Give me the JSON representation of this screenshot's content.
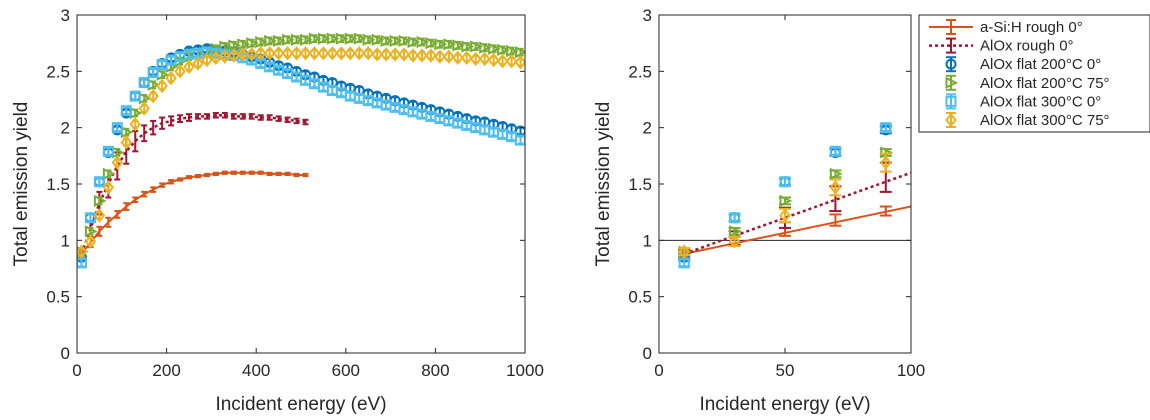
{
  "chart_data": [
    {
      "type": "scatter",
      "xlabel": "Incident energy (eV)",
      "ylabel": "Total emission yield",
      "xlim": [
        0,
        1000
      ],
      "ylim": [
        0,
        3
      ],
      "xticks": [
        0,
        200,
        400,
        600,
        800,
        1000
      ],
      "yticks": [
        0,
        0.5,
        1,
        1.5,
        2,
        2.5,
        3
      ],
      "xtick_labels": [
        "0",
        "200",
        "400",
        "600",
        "800",
        "1000"
      ],
      "ytick_labels": [
        "0",
        "0.5",
        "1",
        "1.5",
        "2",
        "2.5",
        "3"
      ],
      "grid": false,
      "series": [
        {
          "name": "a-Si:H rough 0°",
          "color": "#D95319",
          "marker": "none",
          "line": "solid",
          "errorbars": true,
          "x": [
            10,
            30,
            50,
            70,
            90,
            110,
            130,
            150,
            170,
            190,
            210,
            230,
            250,
            270,
            290,
            310,
            330,
            350,
            370,
            390,
            410,
            430,
            450,
            470,
            490,
            510
          ],
          "y": [
            0.88,
            0.98,
            1.08,
            1.16,
            1.23,
            1.3,
            1.36,
            1.41,
            1.45,
            1.49,
            1.52,
            1.54,
            1.56,
            1.57,
            1.58,
            1.59,
            1.6,
            1.6,
            1.6,
            1.6,
            1.6,
            1.59,
            1.59,
            1.59,
            1.58,
            1.58
          ],
          "err": [
            0.03,
            0.04,
            0.04,
            0.04,
            0.03,
            0.03,
            0.02,
            0.02,
            0.02,
            0.015,
            0.015,
            0.01,
            0.01,
            0.01,
            0.01,
            0.01,
            0.01,
            0.01,
            0.01,
            0.01,
            0.01,
            0.01,
            0.01,
            0.01,
            0.01,
            0.01
          ]
        },
        {
          "name": "AlOx rough 0°",
          "color": "#A2142F",
          "marker": "none",
          "line": "dotted",
          "errorbars": true,
          "x": [
            10,
            30,
            50,
            70,
            90,
            110,
            130,
            150,
            170,
            190,
            210,
            230,
            250,
            270,
            290,
            310,
            330,
            350,
            370,
            390,
            410,
            430,
            450,
            470,
            490,
            510
          ],
          "y": [
            0.88,
            1.1,
            1.33,
            1.5,
            1.66,
            1.79,
            1.88,
            1.95,
            2.0,
            2.04,
            2.06,
            2.08,
            2.09,
            2.1,
            2.1,
            2.11,
            2.11,
            2.1,
            2.1,
            2.1,
            2.09,
            2.09,
            2.08,
            2.07,
            2.06,
            2.05
          ],
          "err": [
            0.04,
            0.07,
            0.1,
            0.12,
            0.12,
            0.11,
            0.09,
            0.07,
            0.06,
            0.05,
            0.04,
            0.03,
            0.03,
            0.02,
            0.02,
            0.02,
            0.02,
            0.02,
            0.02,
            0.02,
            0.02,
            0.02,
            0.02,
            0.02,
            0.02,
            0.02
          ]
        },
        {
          "name": "AlOx flat 200°C 0°",
          "color": "#0072BD",
          "marker": "circle",
          "line": "none",
          "errorbars": true,
          "x": [
            10,
            30,
            50,
            70,
            90,
            110,
            130,
            150,
            170,
            190,
            210,
            230,
            250,
            270,
            290,
            310,
            330,
            350,
            370,
            390,
            410,
            430,
            450,
            470,
            490,
            510,
            530,
            550,
            570,
            590,
            610,
            630,
            650,
            670,
            690,
            710,
            730,
            750,
            770,
            790,
            810,
            830,
            850,
            870,
            890,
            910,
            930,
            950,
            970,
            990
          ],
          "y": [
            0.85,
            1.2,
            1.52,
            1.78,
            1.98,
            2.13,
            2.28,
            2.4,
            2.5,
            2.57,
            2.62,
            2.65,
            2.68,
            2.69,
            2.7,
            2.69,
            2.68,
            2.67,
            2.65,
            2.63,
            2.61,
            2.58,
            2.55,
            2.53,
            2.5,
            2.47,
            2.45,
            2.42,
            2.4,
            2.37,
            2.35,
            2.33,
            2.3,
            2.28,
            2.26,
            2.24,
            2.22,
            2.2,
            2.18,
            2.16,
            2.14,
            2.12,
            2.1,
            2.08,
            2.06,
            2.05,
            2.03,
            2.01,
            1.99,
            1.97
          ],
          "err": [
            0.03,
            0.03,
            0.03,
            0.03,
            0.03,
            0.03,
            0.03,
            0.03,
            0.03,
            0.03,
            0.03,
            0.03,
            0.03,
            0.03,
            0.03,
            0.03,
            0.03,
            0.03,
            0.03,
            0.03,
            0.03,
            0.03,
            0.03,
            0.03,
            0.03,
            0.03,
            0.03,
            0.03,
            0.03,
            0.03,
            0.03,
            0.03,
            0.03,
            0.03,
            0.03,
            0.03,
            0.03,
            0.03,
            0.03,
            0.03,
            0.03,
            0.03,
            0.03,
            0.03,
            0.03,
            0.03,
            0.03,
            0.03,
            0.03,
            0.03
          ]
        },
        {
          "name": "AlOx flat 200°C 75°",
          "color": "#77AC30",
          "marker": "triangle-right",
          "line": "none",
          "errorbars": true,
          "x": [
            10,
            30,
            50,
            70,
            90,
            110,
            130,
            150,
            170,
            190,
            210,
            230,
            250,
            270,
            290,
            310,
            330,
            350,
            370,
            390,
            410,
            430,
            450,
            470,
            490,
            510,
            530,
            550,
            570,
            590,
            610,
            630,
            650,
            670,
            690,
            710,
            730,
            750,
            770,
            790,
            810,
            830,
            850,
            870,
            890,
            910,
            930,
            950,
            970,
            990
          ],
          "y": [
            0.9,
            1.08,
            1.35,
            1.59,
            1.78,
            1.96,
            2.13,
            2.26,
            2.38,
            2.47,
            2.54,
            2.59,
            2.63,
            2.66,
            2.68,
            2.7,
            2.72,
            2.73,
            2.74,
            2.75,
            2.76,
            2.77,
            2.77,
            2.78,
            2.78,
            2.78,
            2.79,
            2.79,
            2.79,
            2.79,
            2.79,
            2.79,
            2.78,
            2.78,
            2.77,
            2.77,
            2.77,
            2.76,
            2.76,
            2.75,
            2.74,
            2.74,
            2.73,
            2.72,
            2.72,
            2.71,
            2.7,
            2.69,
            2.68,
            2.67
          ],
          "err": [
            0.03,
            0.03,
            0.03,
            0.03,
            0.03,
            0.03,
            0.03,
            0.03,
            0.03,
            0.03,
            0.03,
            0.03,
            0.03,
            0.03,
            0.03,
            0.03,
            0.03,
            0.03,
            0.03,
            0.03,
            0.03,
            0.03,
            0.03,
            0.03,
            0.03,
            0.03,
            0.03,
            0.03,
            0.03,
            0.03,
            0.03,
            0.03,
            0.03,
            0.03,
            0.03,
            0.03,
            0.03,
            0.03,
            0.03,
            0.03,
            0.03,
            0.03,
            0.03,
            0.03,
            0.03,
            0.03,
            0.03,
            0.03,
            0.03,
            0.03
          ]
        },
        {
          "name": "AlOx flat 300°C 0°",
          "color": "#4DBEEE",
          "marker": "square",
          "line": "none",
          "errorbars": true,
          "x": [
            10,
            30,
            50,
            70,
            90,
            110,
            130,
            150,
            170,
            190,
            210,
            230,
            250,
            270,
            290,
            310,
            330,
            350,
            370,
            390,
            410,
            430,
            450,
            470,
            490,
            510,
            530,
            550,
            570,
            590,
            610,
            630,
            650,
            670,
            690,
            710,
            730,
            750,
            770,
            790,
            810,
            830,
            850,
            870,
            890,
            910,
            930,
            950,
            970,
            990
          ],
          "y": [
            0.8,
            1.2,
            1.52,
            1.79,
            2.0,
            2.15,
            2.28,
            2.4,
            2.49,
            2.56,
            2.6,
            2.63,
            2.65,
            2.66,
            2.67,
            2.66,
            2.65,
            2.64,
            2.62,
            2.6,
            2.57,
            2.54,
            2.51,
            2.48,
            2.45,
            2.42,
            2.39,
            2.36,
            2.33,
            2.31,
            2.28,
            2.26,
            2.24,
            2.22,
            2.2,
            2.18,
            2.16,
            2.14,
            2.12,
            2.1,
            2.08,
            2.06,
            2.04,
            2.02,
            2.0,
            1.98,
            1.96,
            1.94,
            1.92,
            1.89
          ],
          "err": [
            0.03,
            0.03,
            0.03,
            0.03,
            0.03,
            0.03,
            0.03,
            0.03,
            0.03,
            0.03,
            0.03,
            0.03,
            0.03,
            0.03,
            0.03,
            0.03,
            0.03,
            0.03,
            0.03,
            0.03,
            0.03,
            0.03,
            0.03,
            0.03,
            0.03,
            0.03,
            0.03,
            0.03,
            0.03,
            0.03,
            0.03,
            0.03,
            0.03,
            0.03,
            0.03,
            0.03,
            0.03,
            0.03,
            0.03,
            0.03,
            0.03,
            0.03,
            0.03,
            0.03,
            0.03,
            0.03,
            0.03,
            0.03,
            0.03,
            0.03
          ]
        },
        {
          "name": "AlOx flat 300°C 75°",
          "color": "#EDB120",
          "marker": "diamond",
          "line": "none",
          "errorbars": true,
          "x": [
            10,
            30,
            50,
            70,
            90,
            110,
            130,
            150,
            170,
            190,
            210,
            230,
            250,
            270,
            290,
            310,
            330,
            350,
            370,
            390,
            410,
            430,
            450,
            470,
            490,
            510,
            530,
            550,
            570,
            590,
            610,
            630,
            650,
            670,
            690,
            710,
            730,
            750,
            770,
            790,
            810,
            830,
            850,
            870,
            890,
            910,
            930,
            950,
            970,
            990
          ],
          "y": [
            0.9,
            0.99,
            1.22,
            1.47,
            1.69,
            1.87,
            2.03,
            2.17,
            2.28,
            2.37,
            2.44,
            2.5,
            2.54,
            2.57,
            2.6,
            2.62,
            2.63,
            2.64,
            2.65,
            2.65,
            2.66,
            2.66,
            2.66,
            2.66,
            2.66,
            2.66,
            2.66,
            2.66,
            2.66,
            2.66,
            2.66,
            2.66,
            2.66,
            2.65,
            2.65,
            2.65,
            2.65,
            2.64,
            2.64,
            2.64,
            2.63,
            2.63,
            2.62,
            2.62,
            2.61,
            2.61,
            2.6,
            2.59,
            2.59,
            2.58
          ],
          "err": [
            0.03,
            0.03,
            0.03,
            0.03,
            0.03,
            0.03,
            0.03,
            0.03,
            0.03,
            0.03,
            0.03,
            0.03,
            0.03,
            0.03,
            0.03,
            0.03,
            0.03,
            0.03,
            0.03,
            0.03,
            0.03,
            0.03,
            0.03,
            0.03,
            0.03,
            0.03,
            0.03,
            0.03,
            0.03,
            0.03,
            0.03,
            0.03,
            0.03,
            0.03,
            0.03,
            0.03,
            0.03,
            0.03,
            0.03,
            0.03,
            0.03,
            0.03,
            0.03,
            0.03,
            0.03,
            0.03,
            0.03,
            0.03,
            0.03,
            0.03
          ]
        }
      ]
    },
    {
      "type": "scatter",
      "xlabel": "Incident energy (eV)",
      "ylabel": "Total emission yield",
      "xlim": [
        0,
        100
      ],
      "ylim": [
        0,
        3
      ],
      "xticks": [
        0,
        50,
        100
      ],
      "yticks": [
        0,
        0.5,
        1,
        1.5,
        2,
        2.5,
        3
      ],
      "xtick_labels": [
        "0",
        "50",
        "100"
      ],
      "ytick_labels": [
        "0",
        "0.5",
        "1",
        "1.5",
        "2",
        "2.5",
        "3"
      ],
      "grid": false,
      "reference_line_y": 1,
      "legend_position": "outside-right-top",
      "series": [
        {
          "name": "a-Si:H rough 0°",
          "color": "#D95319",
          "marker": "none",
          "line": "solid",
          "errorbars": true,
          "x": [
            10,
            30,
            50,
            70,
            90
          ],
          "y": [
            0.88,
            0.99,
            1.1,
            1.18,
            1.26
          ],
          "err": [
            0.03,
            0.04,
            0.06,
            0.05,
            0.04
          ],
          "fit_line": {
            "x": [
              10,
              100
            ],
            "y": [
              0.88,
              1.3
            ]
          }
        },
        {
          "name": "AlOx rough 0°",
          "color": "#A2142F",
          "marker": "none",
          "line": "dotted",
          "errorbars": true,
          "x": [
            10,
            30,
            50,
            70,
            90
          ],
          "y": [
            0.88,
            1.02,
            1.2,
            1.37,
            1.56
          ],
          "err": [
            0.04,
            0.06,
            0.09,
            0.11,
            0.13
          ],
          "fit_line": {
            "x": [
              10,
              100
            ],
            "y": [
              0.88,
              1.6
            ]
          }
        },
        {
          "name": "AlOx flat 200°C 0°",
          "color": "#0072BD",
          "marker": "circle",
          "line": "none",
          "errorbars": true,
          "x": [
            10,
            30,
            50,
            70,
            90
          ],
          "y": [
            0.85,
            1.2,
            1.52,
            1.78,
            1.98
          ],
          "err": [
            0.03,
            0.03,
            0.03,
            0.03,
            0.03
          ]
        },
        {
          "name": "AlOx flat 200°C 75°",
          "color": "#77AC30",
          "marker": "triangle-right",
          "line": "none",
          "errorbars": true,
          "x": [
            10,
            30,
            50,
            70,
            90
          ],
          "y": [
            0.9,
            1.08,
            1.35,
            1.59,
            1.78
          ],
          "err": [
            0.03,
            0.03,
            0.03,
            0.03,
            0.03
          ]
        },
        {
          "name": "AlOx flat 300°C 0°",
          "color": "#4DBEEE",
          "marker": "square",
          "line": "none",
          "errorbars": true,
          "x": [
            10,
            30,
            50,
            70,
            90
          ],
          "y": [
            0.8,
            1.2,
            1.52,
            1.79,
            2.0
          ],
          "err": [
            0.03,
            0.03,
            0.03,
            0.03,
            0.03
          ]
        },
        {
          "name": "AlOx flat 300°C 75°",
          "color": "#EDB120",
          "marker": "diamond",
          "line": "none",
          "errorbars": true,
          "x": [
            10,
            30,
            50,
            70,
            90
          ],
          "y": [
            0.9,
            0.99,
            1.22,
            1.47,
            1.69
          ],
          "err": [
            0.03,
            0.04,
            0.06,
            0.07,
            0.08
          ]
        }
      ]
    }
  ]
}
